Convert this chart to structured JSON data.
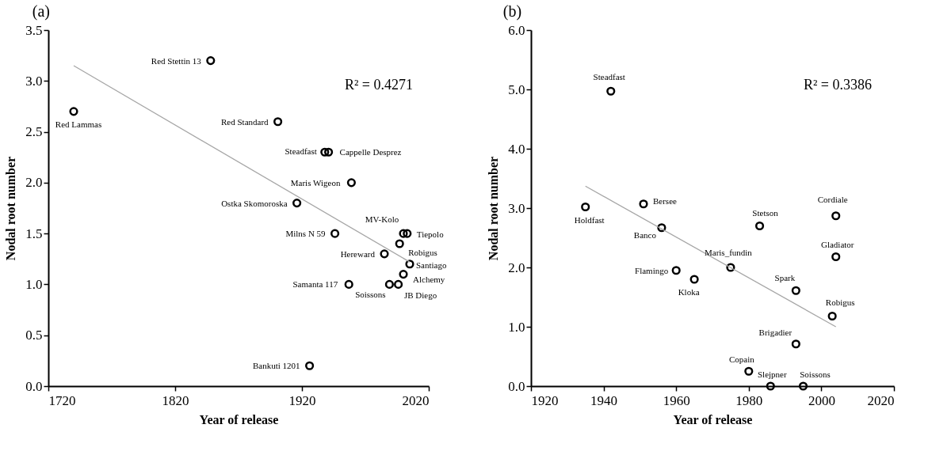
{
  "chart_data": [
    {
      "type": "scatter",
      "title": "(a)",
      "xlabel": "Year of release",
      "ylabel": "Nodal root number",
      "xlim": [
        1720,
        2020
      ],
      "xticks": [
        1720,
        1820,
        1920,
        2020
      ],
      "ylim": [
        0,
        3.5
      ],
      "yticks": [
        {
          "value": 0,
          "label": "0.0"
        },
        {
          "value": 0.5,
          "label": "0.5"
        },
        {
          "value": 1,
          "label": "1.0"
        },
        {
          "value": 1.5,
          "label": "1.5"
        },
        {
          "value": 2,
          "label": "2.0"
        },
        {
          "value": 2.5,
          "label": "2.5"
        },
        {
          "value": 3,
          "label": "3.0"
        },
        {
          "value": 3.5,
          "label": "3.5"
        }
      ],
      "grid": false,
      "marker": "circle",
      "series": [
        {
          "color": "#000000",
          "x": [
            1740,
            1848,
            1901,
            1938,
            1941,
            1959,
            1916,
            1946,
            2000,
            2003,
            1997,
            1985,
            2005,
            2000,
            1957,
            1989,
            1996,
            1926
          ],
          "values": [
            2.7,
            3.2,
            2.6,
            2.3,
            2.3,
            2.0,
            1.8,
            1.5,
            1.5,
            1.5,
            1.4,
            1.3,
            1.2,
            1.1,
            1.0,
            1.0,
            1.0,
            0.2
          ]
        },
        {
          "type": "line",
          "marker": "none",
          "color": "#a6a6a6",
          "x": [
            1740,
            2005
          ],
          "values": [
            3.15,
            1.22
          ]
        }
      ],
      "annotations": [
        "R² = 0.4271",
        {
          "text": "Red Lammas",
          "x": 1740,
          "y": 2.7
        },
        {
          "text": "Red Stettin 13",
          "x": 1848,
          "y": 3.2
        },
        {
          "text": "Red Standard",
          "x": 1901,
          "y": 2.6
        },
        {
          "text": "Steadfast",
          "x": 1938,
          "y": 2.3
        },
        {
          "text": "Cappelle Desprez",
          "x": 1941,
          "y": 2.3
        },
        {
          "text": "Maris Wigeon",
          "x": 1959,
          "y": 2.0
        },
        {
          "text": "Ostka Skomoroska",
          "x": 1916,
          "y": 1.8
        },
        {
          "text": "Milns N 59",
          "x": 1946,
          "y": 1.5
        },
        {
          "text": "MV-Kolo",
          "x": 2000,
          "y": 1.5
        },
        {
          "text": "Tiepolo",
          "x": 2003,
          "y": 1.5
        },
        {
          "text": "Robigus",
          "x": 1997,
          "y": 1.4
        },
        {
          "text": "Hereward",
          "x": 1985,
          "y": 1.3
        },
        {
          "text": "Santiago",
          "x": 2005,
          "y": 1.2
        },
        {
          "text": "Alchemy",
          "x": 2000,
          "y": 1.1
        },
        {
          "text": "Samanta 117",
          "x": 1957,
          "y": 1.0
        },
        {
          "text": "Soissons",
          "x": 1989,
          "y": 1.0
        },
        {
          "text": "JB Diego",
          "x": 1996,
          "y": 1.0
        },
        {
          "text": "Bankuti 1201",
          "x": 1926,
          "y": 0.2
        }
      ]
    },
    {
      "type": "scatter",
      "title": "(b)",
      "xlabel": "Year of release",
      "ylabel": "Nodal root number",
      "xlim": [
        1920,
        2020
      ],
      "xticks": [
        1920,
        1940,
        1960,
        1980,
        2000,
        2020
      ],
      "ylim": [
        0,
        6
      ],
      "yticks": [
        {
          "value": 0,
          "label": "0.0"
        },
        {
          "value": 1,
          "label": "1.0"
        },
        {
          "value": 2,
          "label": "2.0"
        },
        {
          "value": 3,
          "label": "3.0"
        },
        {
          "value": 4,
          "label": "4.0"
        },
        {
          "value": 5,
          "label": "5.0"
        },
        {
          "value": 6,
          "label": "6.0"
        }
      ],
      "grid": false,
      "marker": "circle",
      "series": [
        {
          "color": "#000000",
          "x": [
            1942,
            1935,
            1951,
            1956,
            1983,
            2004,
            2004,
            1975,
            1960,
            1965,
            1993,
            2003,
            1993,
            1980,
            1986,
            1995
          ],
          "values": [
            4.97,
            3.02,
            3.07,
            2.67,
            2.7,
            2.87,
            2.18,
            2.0,
            1.95,
            1.8,
            1.61,
            1.18,
            0.71,
            0.25,
            0.0,
            0.0
          ]
        },
        {
          "type": "line",
          "marker": "none",
          "color": "#a6a6a6",
          "x": [
            1935,
            2004
          ],
          "values": [
            3.37,
            1.0
          ]
        }
      ],
      "annotations": [
        "R² = 0.3386",
        {
          "text": "Steadfast",
          "x": 1942,
          "y": 4.97
        },
        {
          "text": "Holdfast",
          "x": 1935,
          "y": 3.02
        },
        {
          "text": "Bersee",
          "x": 1951,
          "y": 3.07
        },
        {
          "text": "Banco",
          "x": 1956,
          "y": 2.67
        },
        {
          "text": "Stetson",
          "x": 1983,
          "y": 2.7
        },
        {
          "text": "Cordiale",
          "x": 2004,
          "y": 2.87
        },
        {
          "text": "Gladiator",
          "x": 2004,
          "y": 2.18
        },
        {
          "text": "Maris_fundin",
          "x": 1975,
          "y": 2.0
        },
        {
          "text": "Flamingo",
          "x": 1960,
          "y": 1.95
        },
        {
          "text": "Kloka",
          "x": 1965,
          "y": 1.8
        },
        {
          "text": "Spark",
          "x": 1993,
          "y": 1.61
        },
        {
          "text": "Robigus",
          "x": 2003,
          "y": 1.18
        },
        {
          "text": "Brigadier",
          "x": 1993,
          "y": 0.71
        },
        {
          "text": "Copain",
          "x": 1980,
          "y": 0.25
        },
        {
          "text": "Slejpner",
          "x": 1986,
          "y": 0.0
        },
        {
          "text": "Soissons",
          "x": 1995,
          "y": 0.0
        }
      ]
    }
  ]
}
